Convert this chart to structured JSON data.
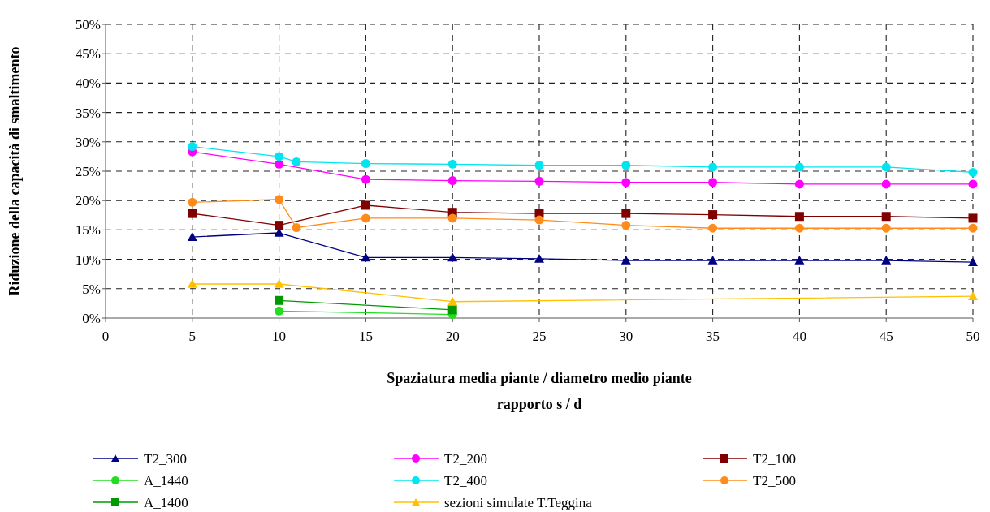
{
  "chart_data": {
    "type": "line",
    "xlabel": "Spaziatura media piante / diametro medio piante\nrapporto s / d",
    "ylabel": "Riduzione della capacità di smaltimento",
    "xlim": [
      0,
      50
    ],
    "xticks": [
      0,
      5,
      10,
      15,
      20,
      25,
      30,
      35,
      40,
      45,
      50
    ],
    "ylim": [
      0,
      50
    ],
    "yticks": [
      {
        "value": 0,
        "label": "0%"
      },
      {
        "value": 5,
        "label": "5%"
      },
      {
        "value": 10,
        "label": "10%"
      },
      {
        "value": 15,
        "label": "15%"
      },
      {
        "value": 20,
        "label": "20%"
      },
      {
        "value": 25,
        "label": "25%"
      },
      {
        "value": 30,
        "label": "30%"
      },
      {
        "value": 35,
        "label": "35%"
      },
      {
        "value": 40,
        "label": "40%"
      },
      {
        "value": 45,
        "label": "45%"
      },
      {
        "value": 50,
        "label": "50%"
      }
    ],
    "grid": true,
    "legend": "bottom",
    "line_style": "solid",
    "series": [
      {
        "name": "T2_300",
        "color": "#000080",
        "marker": "triangle",
        "x": [
          5,
          10,
          15,
          20,
          25,
          30,
          35,
          40,
          45,
          50
        ],
        "values": [
          13.8,
          14.5,
          10.3,
          10.3,
          10.1,
          9.8,
          9.8,
          9.8,
          9.8,
          9.5
        ]
      },
      {
        "name": "T2_200",
        "color": "#ff00ff",
        "marker": "circle",
        "x": [
          5,
          10,
          15,
          20,
          25,
          30,
          35,
          40,
          45,
          50
        ],
        "values": [
          28.3,
          26.2,
          23.6,
          23.4,
          23.3,
          23.1,
          23.1,
          22.8,
          22.8,
          22.8
        ]
      },
      {
        "name": "T2_100",
        "color": "#800000",
        "marker": "square",
        "x": [
          5,
          10,
          15,
          20,
          25,
          30,
          35,
          40,
          45,
          50
        ],
        "values": [
          17.8,
          15.8,
          19.2,
          18.0,
          17.8,
          17.8,
          17.6,
          17.3,
          17.3,
          17.0
        ]
      },
      {
        "name": "A_1440",
        "color": "#22dd22",
        "marker": "circle",
        "x": [
          10,
          20
        ],
        "values": [
          1.2,
          0.6
        ]
      },
      {
        "name": "T2_400",
        "color": "#00e5f0",
        "marker": "circle",
        "x": [
          5,
          10,
          11,
          15,
          20,
          25,
          30,
          35,
          40,
          45,
          50
        ],
        "values": [
          29.2,
          27.5,
          26.6,
          26.3,
          26.2,
          26.0,
          26.0,
          25.7,
          25.7,
          25.7,
          24.8
        ]
      },
      {
        "name": "T2_500",
        "color": "#ff8c1a",
        "marker": "circle",
        "x": [
          5,
          10,
          11,
          15,
          20,
          25,
          30,
          35,
          40,
          45,
          50
        ],
        "values": [
          19.7,
          20.2,
          15.4,
          17.0,
          17.0,
          16.7,
          15.8,
          15.3,
          15.3,
          15.3,
          15.3
        ]
      },
      {
        "name": "A_1400",
        "color": "#009900",
        "marker": "square",
        "x": [
          10,
          20
        ],
        "values": [
          3.0,
          1.4
        ]
      },
      {
        "name": "sezioni simulate T.Teggina",
        "color": "#ffc000",
        "marker": "triangle",
        "x": [
          5,
          10,
          20,
          50
        ],
        "values": [
          5.8,
          5.8,
          2.8,
          3.7
        ]
      }
    ]
  }
}
